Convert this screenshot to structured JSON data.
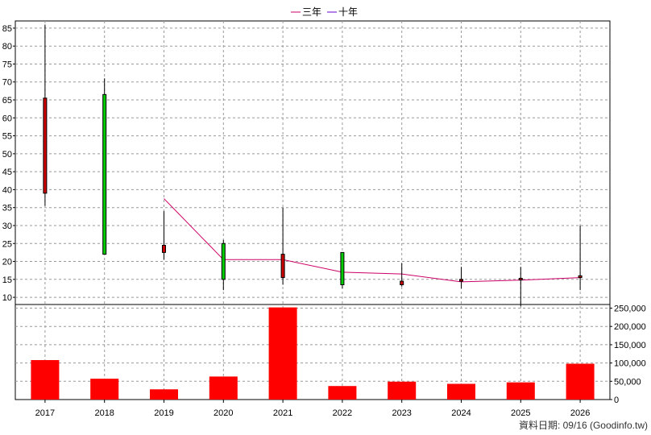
{
  "chart_data": {
    "type": "candlestick+bar",
    "legend": [
      {
        "label": "三年",
        "color": "#cc0066"
      },
      {
        "label": "十年",
        "color": "#6600cc"
      }
    ],
    "categories": [
      "2017",
      "2018",
      "2019",
      "2020",
      "2021",
      "2022",
      "2023",
      "2024",
      "2025",
      "2026"
    ],
    "price_axis": {
      "ylim": [
        8,
        87
      ],
      "ticks": [
        10,
        15,
        20,
        25,
        30,
        35,
        40,
        45,
        50,
        55,
        60,
        65,
        70,
        75,
        80,
        85
      ]
    },
    "volume_axis": {
      "ylim": [
        0,
        260000
      ],
      "ticks": [
        0,
        50000,
        100000,
        150000,
        200000,
        250000
      ],
      "tick_labels": [
        "0",
        "50,000",
        "100,000",
        "150,000",
        "200,000",
        "250,000"
      ]
    },
    "candles": [
      {
        "year": "2017",
        "open": 39,
        "close": 65.5,
        "high": 86,
        "low": 35.5,
        "color": "#cc0000"
      },
      {
        "year": "2018",
        "open": 66.5,
        "close": 22,
        "high": 71,
        "low": 22,
        "color": "#00cc00"
      },
      {
        "year": "2019",
        "open": 22.5,
        "close": 24.5,
        "high": 34,
        "low": 20.5,
        "color": "#cc0000"
      },
      {
        "year": "2020",
        "open": 25,
        "close": 15,
        "high": 26,
        "low": 12,
        "color": "#00cc00"
      },
      {
        "year": "2021",
        "open": 15.5,
        "close": 22,
        "high": 35,
        "low": 13.5,
        "color": "#cc0000"
      },
      {
        "year": "2022",
        "open": 22.5,
        "close": 13.5,
        "high": 22.5,
        "low": 12.5,
        "color": "#00cc00"
      },
      {
        "year": "2023",
        "open": 13.5,
        "close": 14.5,
        "high": 19.5,
        "low": 13,
        "color": "#cc0000"
      },
      {
        "year": "2024",
        "open": 14.5,
        "close": 15,
        "high": 18.5,
        "low": 12.5,
        "color": "#cc0000"
      },
      {
        "year": "2025",
        "open": 15,
        "close": 15.3,
        "high": 18.5,
        "low": 7.5,
        "color": "#cc0000"
      },
      {
        "year": "2026",
        "open": 15.5,
        "close": 16,
        "high": 30,
        "low": 12,
        "color": "#cc0000"
      }
    ],
    "three_year_avg": {
      "name": "三年",
      "x": [
        "2019",
        "2020",
        "2021",
        "2022",
        "2023",
        "2024",
        "2025",
        "2026"
      ],
      "values": [
        37.5,
        20.5,
        20.5,
        17,
        16.5,
        14.3,
        14.8,
        15.5
      ]
    },
    "volume": {
      "values": [
        108000,
        57000,
        28000,
        63000,
        252000,
        37000,
        49000,
        43000,
        47000,
        98000
      ],
      "color": "#ff0000"
    },
    "grid": true
  },
  "footer": {
    "text": "資料日期: 09/16  (Goodinfo.tw)"
  }
}
